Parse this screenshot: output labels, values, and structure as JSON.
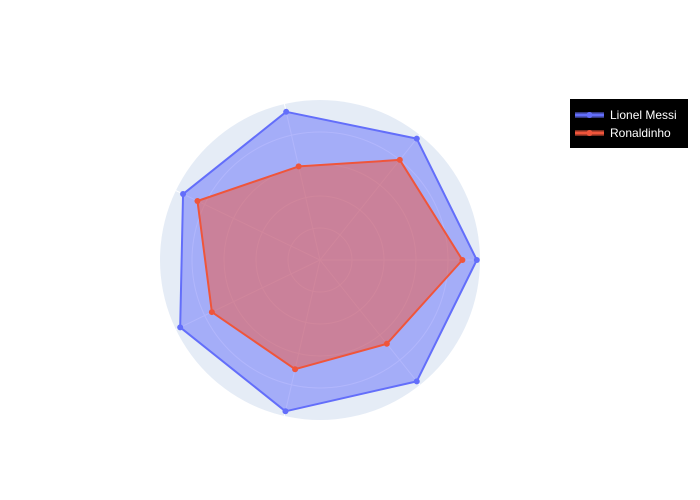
{
  "chart_data": {
    "type": "radar",
    "axes_count": 7,
    "rmax": 1.0,
    "series": [
      {
        "name": "Lionel Messi",
        "values": [
          0.98,
          0.97,
          0.95,
          0.95,
          0.97,
          0.97,
          0.97
        ],
        "color": "#636efa",
        "fill": "rgba(99,110,250,0.5)"
      },
      {
        "name": "Ronaldinho",
        "values": [
          0.89,
          0.8,
          0.6,
          0.85,
          0.75,
          0.7,
          0.67
        ],
        "color": "#ef553b",
        "fill": "rgba(239,85,59,0.5)"
      }
    ],
    "legend_position": "top-right",
    "polar_background": "#e5ecf6",
    "legend_background": "#000000"
  }
}
